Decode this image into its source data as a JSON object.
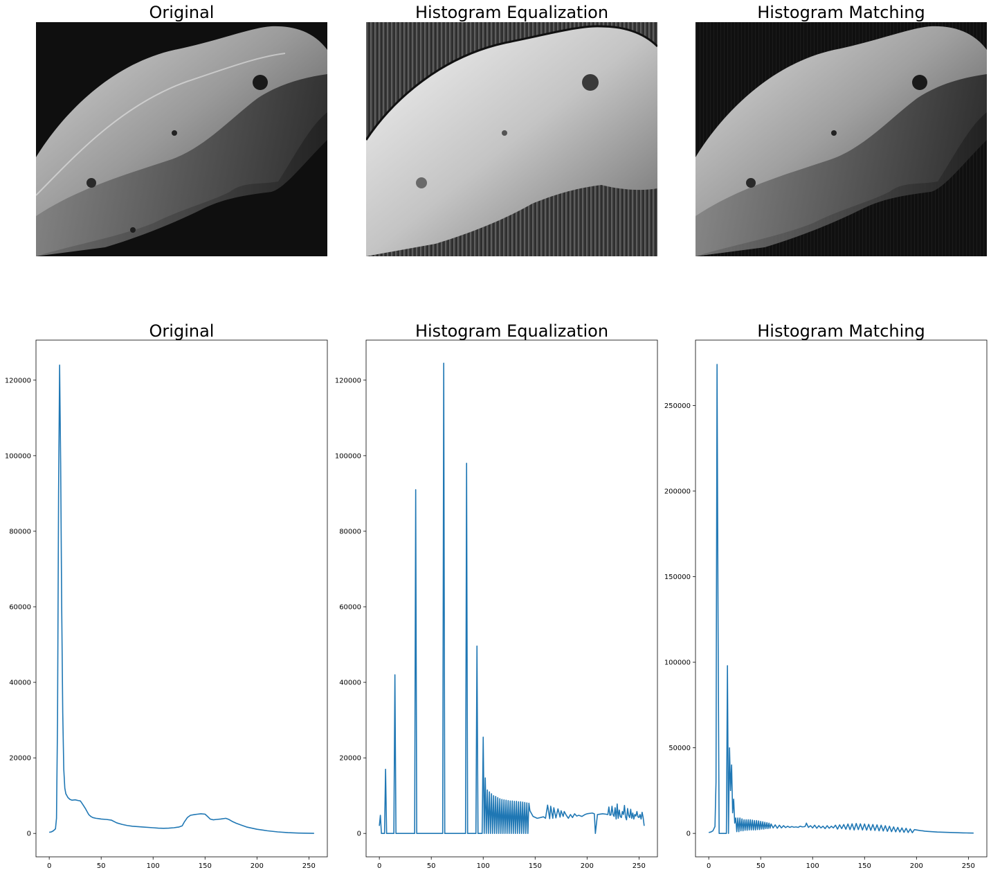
{
  "figure": {
    "image_titles": [
      "Original",
      "Histogram Equalization",
      "Histogram Matching"
    ]
  },
  "chart_data": [
    {
      "type": "line",
      "title": "Original",
      "xlabel": "",
      "ylabel": "",
      "xlim": [
        -12.75,
        267.75
      ],
      "ylim": [
        -6200,
        130600
      ],
      "xticks": [
        0,
        50,
        100,
        150,
        200,
        250
      ],
      "yticks": [
        0,
        20000,
        40000,
        60000,
        80000,
        100000,
        120000
      ],
      "grid": false,
      "line_color": "#1f77b4",
      "series": [
        {
          "x": [
            0,
            2,
            4,
            6,
            7,
            8,
            9,
            10,
            11,
            12,
            13,
            14,
            15,
            16,
            17,
            18,
            20,
            22,
            25,
            28,
            30,
            32,
            35,
            38,
            40,
            42,
            45,
            48,
            50,
            55,
            60,
            65,
            70,
            75,
            80,
            90,
            100,
            105,
            110,
            115,
            120,
            125,
            128,
            130,
            133,
            136,
            140,
            143,
            146,
            150,
            152,
            155,
            158,
            161,
            165,
            170,
            173,
            176,
            180,
            185,
            190,
            195,
            200,
            210,
            220,
            230,
            240,
            250,
            255
          ],
          "y": [
            300,
            400,
            700,
            1200,
            4000,
            30000,
            90000,
            124000,
            98000,
            60000,
            32000,
            17000,
            12000,
            10500,
            10000,
            9500,
            9000,
            8800,
            8900,
            8700,
            8600,
            7800,
            6500,
            5000,
            4500,
            4200,
            4000,
            3900,
            3800,
            3700,
            3500,
            2800,
            2400,
            2100,
            1900,
            1700,
            1500,
            1400,
            1350,
            1400,
            1500,
            1700,
            2000,
            3000,
            4200,
            4800,
            5000,
            5100,
            5200,
            5100,
            4600,
            3800,
            3600,
            3700,
            3800,
            4000,
            3700,
            3200,
            2700,
            2200,
            1700,
            1400,
            1100,
            700,
            400,
            200,
            100,
            50,
            30
          ]
        }
      ]
    },
    {
      "type": "line",
      "title": "Histogram Equalization",
      "xlabel": "",
      "ylabel": "",
      "xlim": [
        -12.75,
        267.75
      ],
      "ylim": [
        -6200,
        130600
      ],
      "xticks": [
        0,
        50,
        100,
        150,
        200,
        250
      ],
      "yticks": [
        0,
        20000,
        40000,
        60000,
        80000,
        100000,
        120000
      ],
      "grid": false,
      "line_color": "#1f77b4",
      "series": [
        {
          "x": [
            0,
            1,
            2,
            3,
            5,
            6,
            7,
            8,
            14,
            15,
            16,
            34,
            35,
            36,
            61,
            62,
            63,
            83,
            84,
            85,
            93,
            94,
            95,
            99,
            100,
            101,
            102,
            103,
            104,
            105,
            106,
            107,
            108,
            109,
            110,
            111,
            112,
            113,
            114,
            115,
            116,
            117,
            118,
            119,
            120,
            121,
            122,
            123,
            124,
            125,
            126,
            127,
            128,
            129,
            130,
            131,
            132,
            133,
            134,
            135,
            136,
            137,
            138,
            139,
            140,
            141,
            142,
            143,
            144,
            145,
            148,
            152,
            155,
            158,
            160,
            162,
            164,
            165,
            167,
            168,
            170,
            172,
            174,
            175,
            177,
            178,
            180,
            182,
            184,
            186,
            188,
            190,
            192,
            195,
            198,
            200,
            205,
            207,
            208,
            210,
            215,
            218,
            220,
            221,
            222,
            223,
            224,
            225,
            226,
            227,
            228,
            229,
            230,
            231,
            232,
            233,
            234,
            235,
            236,
            237,
            238,
            239,
            240,
            241,
            242,
            243,
            244,
            245,
            246,
            247,
            248,
            249,
            250,
            251,
            252,
            253,
            254,
            255
          ],
          "y": [
            2000,
            4800,
            0,
            0,
            0,
            17000,
            0,
            0,
            0,
            42000,
            0,
            0,
            91000,
            0,
            0,
            124500,
            0,
            0,
            98000,
            0,
            0,
            49600,
            0,
            0,
            25500,
            0,
            14700,
            0,
            11500,
            0,
            11000,
            0,
            10500,
            0,
            10000,
            0,
            9800,
            0,
            9500,
            0,
            9200,
            0,
            9000,
            0,
            8900,
            0,
            8800,
            0,
            8700,
            0,
            8600,
            0,
            8600,
            0,
            8500,
            0,
            8500,
            0,
            8400,
            0,
            8400,
            0,
            8300,
            0,
            8200,
            0,
            8100,
            0,
            8000,
            6000,
            4500,
            4000,
            4200,
            4400,
            4000,
            7500,
            3900,
            7200,
            4000,
            6800,
            4100,
            6500,
            4300,
            6000,
            4500,
            5800,
            4800,
            4000,
            5000,
            4200,
            5200,
            4600,
            4800,
            4500,
            5000,
            5200,
            5400,
            5200,
            0,
            5000,
            5200,
            5100,
            5000,
            7000,
            4800,
            4900,
            7200,
            5000,
            4500,
            6800,
            3800,
            7800,
            4000,
            6200,
            4500,
            4200,
            5800,
            5000,
            7400,
            4400,
            3600,
            6600,
            4800,
            4200,
            6400,
            4000,
            5400,
            3800,
            5000,
            4600,
            5800,
            4400,
            4200,
            5000,
            3800,
            5600,
            4200,
            2000
          ]
        }
      ]
    },
    {
      "type": "line",
      "title": "Histogram Matching",
      "xlabel": "",
      "ylabel": "",
      "xlim": [
        -12.75,
        267.75
      ],
      "ylim": [
        -13700,
        288200
      ],
      "xticks": [
        0,
        50,
        100,
        150,
        200,
        250
      ],
      "yticks": [
        0,
        50000,
        100000,
        150000,
        200000,
        250000
      ],
      "grid": false,
      "line_color": "#1f77b4",
      "series": [
        {
          "x": [
            0,
            2,
            4,
            6,
            7,
            8,
            9,
            10,
            17,
            18,
            19,
            20,
            21,
            22,
            23,
            24,
            25,
            26,
            27,
            28,
            29,
            30,
            31,
            32,
            33,
            34,
            35,
            36,
            37,
            38,
            39,
            40,
            41,
            42,
            43,
            44,
            45,
            46,
            47,
            48,
            49,
            50,
            51,
            52,
            53,
            54,
            55,
            56,
            57,
            58,
            59,
            60,
            62,
            64,
            66,
            68,
            70,
            72,
            74,
            76,
            78,
            80,
            82,
            84,
            86,
            88,
            90,
            92,
            93,
            94,
            96,
            98,
            100,
            102,
            104,
            106,
            108,
            110,
            112,
            114,
            116,
            118,
            120,
            122,
            124,
            126,
            128,
            130,
            132,
            134,
            136,
            138,
            140,
            142,
            144,
            146,
            148,
            150,
            152,
            154,
            156,
            158,
            160,
            162,
            164,
            166,
            168,
            170,
            172,
            174,
            176,
            178,
            180,
            182,
            184,
            186,
            188,
            190,
            192,
            194,
            196,
            198,
            200,
            202,
            204,
            206,
            208,
            210,
            215,
            220,
            225,
            230,
            235,
            240,
            245,
            250,
            255
          ],
          "y": [
            500,
            800,
            1500,
            4000,
            30000,
            274000,
            120000,
            0,
            0,
            98000,
            0,
            50000,
            25000,
            40000,
            12000,
            20000,
            6000,
            9000,
            1000,
            9000,
            1000,
            9000,
            1500,
            8500,
            1500,
            8000,
            1800,
            8000,
            1800,
            8000,
            2000,
            8000,
            2000,
            7800,
            2000,
            7500,
            2000,
            7500,
            2200,
            7300,
            2200,
            7000,
            2500,
            6800,
            2500,
            6500,
            2800,
            6300,
            2800,
            6000,
            3000,
            5500,
            3200,
            5000,
            3000,
            4800,
            3200,
            4500,
            3400,
            4200,
            3500,
            4000,
            3600,
            3800,
            3500,
            4200,
            3800,
            3900,
            4200,
            6000,
            3500,
            4500,
            3200,
            4800,
            3000,
            4500,
            3200,
            4200,
            2800,
            4500,
            3000,
            4200,
            3200,
            4800,
            2500,
            5000,
            2800,
            5200,
            2400,
            5500,
            2200,
            5600,
            2000,
            5800,
            2200,
            5600,
            2000,
            5500,
            1900,
            5300,
            1800,
            5200,
            1700,
            5000,
            1500,
            4800,
            1400,
            4500,
            1200,
            4200,
            1000,
            3800,
            900,
            3500,
            800,
            3200,
            600,
            3000,
            500,
            2600,
            400,
            2200,
            2000,
            1800,
            1600,
            1500,
            1300,
            1200,
            1000,
            800,
            700,
            600,
            500,
            400,
            300,
            250,
            200
          ]
        }
      ]
    }
  ]
}
